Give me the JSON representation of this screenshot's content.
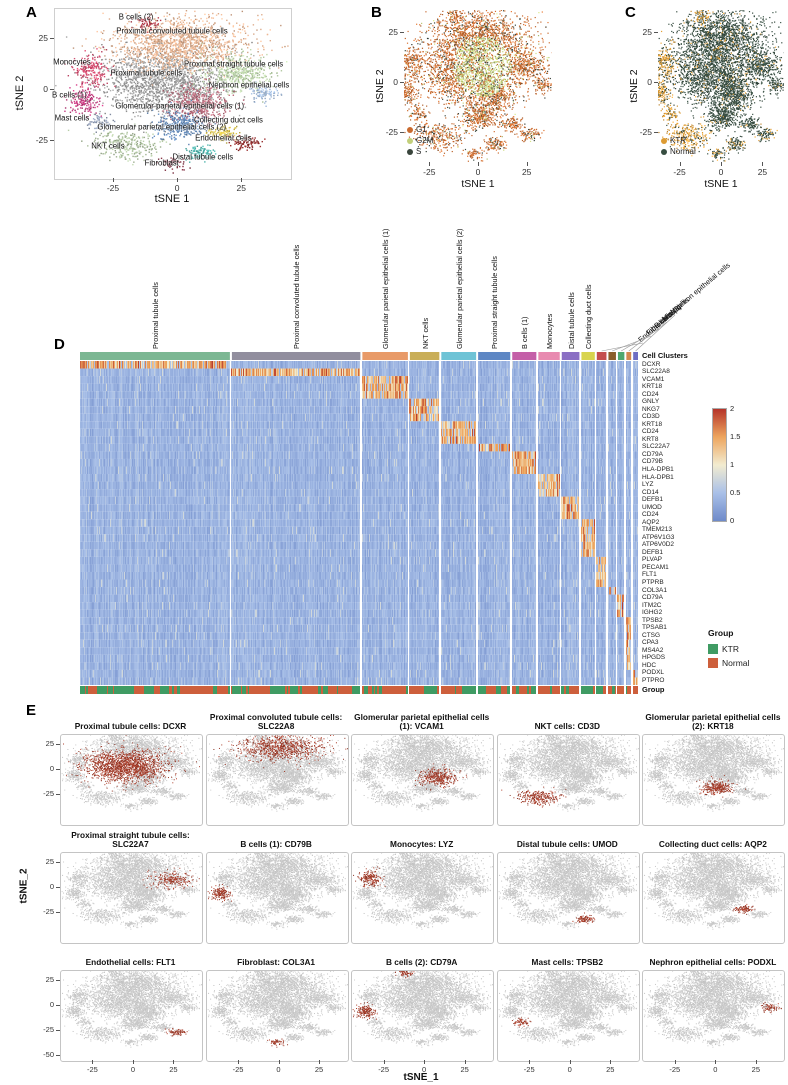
{
  "labels": {
    "a": "A",
    "b": "B",
    "c": "C",
    "d": "D",
    "e": "E"
  },
  "axes": {
    "tsne1": "tSNE 1",
    "tsne2": "tSNE 2",
    "tsne1e": "tSNE_1",
    "tsne2e": "tSNE_2",
    "xticks": [
      -25,
      0,
      25
    ],
    "yticks": [
      25,
      0,
      -25
    ],
    "yticks_last_row": [
      25,
      0,
      -25,
      -50
    ]
  },
  "chart_data": {
    "panel_a": {
      "type": "scatter",
      "xlabel": "tSNE 1",
      "ylabel": "tSNE 2",
      "xlim": [
        -48,
        44
      ],
      "ylim": [
        -44,
        40
      ],
      "xticks": [
        -25,
        0,
        25
      ],
      "yticks": [
        25,
        0,
        -25
      ],
      "clusters": [
        {
          "id": "proximal_tubule",
          "label": "Proximal tubule cells",
          "color": "#9b9b9b",
          "cx": -6,
          "cy": 4,
          "sx": 13,
          "sy": 8,
          "n": 1600,
          "label_at": [
            -12,
            8
          ]
        },
        {
          "id": "proximal_convoluted",
          "label": "Proximal convoluted tubule cells",
          "color": "#e2b08f",
          "cx": 1,
          "cy": 23,
          "sx": 13,
          "sy": 6.5,
          "n": 1400,
          "label_at": [
            -2,
            28.5
          ]
        },
        {
          "id": "b_cells_2",
          "label": "B cells (2)",
          "color": "#b03a48",
          "cx": -12,
          "cy": 33,
          "sx": 2.5,
          "sy": 1.8,
          "n": 60,
          "label_at": [
            -16,
            35.5
          ]
        },
        {
          "id": "monocytes",
          "label": "Monocytes",
          "color": "#d24b6e",
          "cx": -34,
          "cy": 10,
          "sx": 3.5,
          "sy": 4,
          "n": 190,
          "label_at": [
            -41,
            13.5
          ]
        },
        {
          "id": "b_cells_1",
          "label": "B cells (1)",
          "color": "#c23a7e",
          "cx": -37,
          "cy": -5,
          "sx": 3,
          "sy": 3.5,
          "n": 160,
          "label_at": [
            -42,
            -3
          ]
        },
        {
          "id": "mast_cells",
          "label": "Mast cells",
          "color": "#8f9bb3",
          "cx": -31,
          "cy": -16,
          "sx": 2.5,
          "sy": 2,
          "n": 70,
          "label_at": [
            -41,
            -14.5
          ]
        },
        {
          "id": "nkt_cells",
          "label": "NKT cells",
          "color": "#a9bd9a",
          "cx": -20,
          "cy": -27,
          "sx": 6,
          "sy": 3.5,
          "n": 280,
          "label_at": [
            -27,
            -28
          ]
        },
        {
          "id": "glomerular_parietal_1",
          "label": "Glomerular parietal epithelial cells (1)",
          "color": "#b56576",
          "cx": 8,
          "cy": -7,
          "sx": 6,
          "sy": 4.5,
          "n": 430,
          "label_at": [
            1,
            -8.5
          ]
        },
        {
          "id": "glomerular_parietal_2",
          "label": "Glomerular parietal epithelial cells (2)",
          "color": "#5f86b5",
          "cx": 1,
          "cy": -17,
          "sx": 5,
          "sy": 3.5,
          "n": 320,
          "label_at": [
            -6,
            -19
          ]
        },
        {
          "id": "proximal_straight",
          "label": "Proximal straight tubule cells",
          "color": "#b8d0a6",
          "cx": 23,
          "cy": 9,
          "sx": 6.5,
          "sy": 4.5,
          "n": 430,
          "label_at": [
            22,
            12.5
          ]
        },
        {
          "id": "nephron_epithelial",
          "label": "Nephron epithelial cells",
          "color": "#9fb8d8",
          "cx": 33,
          "cy": -1,
          "sx": 3,
          "sy": 2.2,
          "n": 90,
          "label_at": [
            28,
            2
          ]
        },
        {
          "id": "collecting_duct",
          "label": "Collecting duct cells",
          "color": "#d6c04c",
          "cx": 17,
          "cy": -21,
          "sx": 3,
          "sy": 1.8,
          "n": 110,
          "label_at": [
            20,
            -15.5
          ]
        },
        {
          "id": "endothelial",
          "label": "Endothelial cells",
          "color": "#8e2a2a",
          "cx": 26,
          "cy": -26,
          "sx": 3,
          "sy": 1.8,
          "n": 90,
          "label_at": [
            18,
            -24
          ]
        },
        {
          "id": "distal_tubule",
          "label": "Distal tubule cells",
          "color": "#49b0a8",
          "cx": 8,
          "cy": -31,
          "sx": 3,
          "sy": 1.8,
          "n": 110,
          "label_at": [
            10,
            -33.5
          ]
        },
        {
          "id": "fibroblast",
          "label": "Fibroblast",
          "color": "#7c2d3e",
          "cx": -3,
          "cy": -36,
          "sx": 2.5,
          "sy": 1.4,
          "n": 60,
          "label_at": [
            -6,
            -36.5
          ]
        }
      ]
    },
    "panel_b": {
      "type": "scatter",
      "xlabel": "tSNE 1",
      "ylabel": "tSNE 2",
      "xlim": [
        -38,
        38
      ],
      "ylim": [
        -40,
        36
      ],
      "legend": [
        {
          "label": "G1",
          "color": "#c96a2e"
        },
        {
          "label": "G2M",
          "color": "#c2cf7a"
        },
        {
          "label": "S",
          "color": "#39453c"
        }
      ]
    },
    "panel_c": {
      "type": "scatter",
      "xlabel": "tSNE 1",
      "ylabel": "tSNE 2",
      "xlim": [
        -38,
        38
      ],
      "ylim": [
        -40,
        36
      ],
      "legend": [
        {
          "label": "KTR",
          "color": "#dd9b33"
        },
        {
          "label": "Normal",
          "color": "#374d41"
        }
      ]
    },
    "panel_d": {
      "type": "heatmap",
      "strip_label": "Cell Clusters",
      "group_row_label": "Group",
      "columns": [
        {
          "label": "Proximal tubule cells",
          "frac": 0.28,
          "color": "#7cb793",
          "orient": "vertical"
        },
        {
          "label": "Proximal convoluted tubule cells",
          "frac": 0.24,
          "color": "#918e9e",
          "orient": "vertical"
        },
        {
          "label": "Glomerular parietal epithelial cells (1)",
          "frac": 0.085,
          "color": "#e89a68",
          "orient": "vertical"
        },
        {
          "label": "NKT cells",
          "frac": 0.055,
          "color": "#c9ae58",
          "orient": "vertical"
        },
        {
          "label": "Glomerular parietal epithelial cells (2)",
          "frac": 0.065,
          "color": "#6ec3d6",
          "orient": "vertical"
        },
        {
          "label": "Proximal straight tubule cells",
          "frac": 0.06,
          "color": "#5e87c4",
          "orient": "vertical"
        },
        {
          "label": "B cells (1)",
          "frac": 0.045,
          "color": "#c45fa8",
          "orient": "vertical"
        },
        {
          "label": "Monocytes",
          "frac": 0.04,
          "color": "#e88ab0",
          "orient": "vertical"
        },
        {
          "label": "Distal tubule cells",
          "frac": 0.033,
          "color": "#8a6fc4",
          "orient": "vertical"
        },
        {
          "label": "Collecting duct cells",
          "frac": 0.025,
          "color": "#d8d44e",
          "orient": "vertical"
        },
        {
          "label": "Endothelial cells",
          "frac": 0.018,
          "color": "#c44e4e",
          "orient": "diagonal"
        },
        {
          "label": "Fibroblast",
          "frac": 0.014,
          "color": "#8a5e2a",
          "orient": "diagonal"
        },
        {
          "label": "B cells (2)",
          "frac": 0.012,
          "color": "#4ea86e",
          "orient": "diagonal"
        },
        {
          "label": "Mast cells",
          "frac": 0.009,
          "color": "#d4884e",
          "orient": "diagonal"
        },
        {
          "label": "Nephron epithelial cells",
          "frac": 0.009,
          "color": "#6e6ec4",
          "orient": "diagonal"
        }
      ],
      "genes": [
        {
          "name": "DCXR",
          "block": 0
        },
        {
          "name": "SLC22A8",
          "block": 1
        },
        {
          "name": "VCAM1",
          "block": 2
        },
        {
          "name": "KRT18",
          "block": 2
        },
        {
          "name": "CD24",
          "block": 2
        },
        {
          "name": "GNLY",
          "block": 3
        },
        {
          "name": "NKG7",
          "block": 3
        },
        {
          "name": "CD3D",
          "block": 3
        },
        {
          "name": "KRT18",
          "block": 4
        },
        {
          "name": "CD24",
          "block": 4
        },
        {
          "name": "KRT8",
          "block": 4
        },
        {
          "name": "SLC22A7",
          "block": 5
        },
        {
          "name": "CD79A",
          "block": 6
        },
        {
          "name": "CD79B",
          "block": 6
        },
        {
          "name": "HLA-DPB1",
          "block": 6
        },
        {
          "name": "HLA-DPB1",
          "block": 7
        },
        {
          "name": "LYZ",
          "block": 7
        },
        {
          "name": "CD14",
          "block": 7
        },
        {
          "name": "DEFB1",
          "block": 8
        },
        {
          "name": "UMOD",
          "block": 8
        },
        {
          "name": "CD24",
          "block": 8
        },
        {
          "name": "AQP2",
          "block": 9
        },
        {
          "name": "TMEM213",
          "block": 9
        },
        {
          "name": "ATP6V1G3",
          "block": 9
        },
        {
          "name": "ATP6V0D2",
          "block": 9
        },
        {
          "name": "DEFB1",
          "block": 9
        },
        {
          "name": "PLVAP",
          "block": 10
        },
        {
          "name": "PECAM1",
          "block": 10
        },
        {
          "name": "FLT1",
          "block": 10
        },
        {
          "name": "PTPRB",
          "block": 10
        },
        {
          "name": "COL3A1",
          "block": 11
        },
        {
          "name": "CD79A",
          "block": 12
        },
        {
          "name": "ITM2C",
          "block": 12
        },
        {
          "name": "IGHG2",
          "block": 12
        },
        {
          "name": "TPSB2",
          "block": 13
        },
        {
          "name": "TPSAB1",
          "block": 13
        },
        {
          "name": "CTSG",
          "block": 13
        },
        {
          "name": "CPA3",
          "block": 13
        },
        {
          "name": "MS4A2",
          "block": 13
        },
        {
          "name": "HPGDS",
          "block": 13
        },
        {
          "name": "HDC",
          "block": 13
        },
        {
          "name": "PODXL",
          "block": 14
        },
        {
          "name": "PTPRO",
          "block": 14
        }
      ],
      "colorbar": {
        "ticks": [
          2,
          1.5,
          1,
          0.5,
          0
        ],
        "stops": [
          "#b5342a",
          "#eda55e",
          "#f2ecd0",
          "#a9c0e8",
          "#6e8ac9"
        ]
      },
      "group_legend": {
        "title": "Group",
        "items": [
          {
            "label": "KTR",
            "color": "#3f9b63"
          },
          {
            "label": "Normal",
            "color": "#cd5f3c"
          }
        ]
      }
    },
    "panel_e": {
      "type": "scatter-grid",
      "xlabel": "tSNE_1",
      "ylabel": "tSNE_2",
      "xlim": [
        -45,
        42
      ],
      "ylim": [
        -55,
        35
      ],
      "xticks": [
        -25,
        0,
        25
      ],
      "yticks": [
        25,
        0,
        -25
      ],
      "yticks_last_row": [
        25,
        0,
        -25,
        -50
      ],
      "base_color": "#d3d3d3",
      "highlight_color": "#a03a28",
      "plots": [
        {
          "title": "Proximal tubule cells: DCXR",
          "highlight": "proximal_tubule",
          "strength": 1
        },
        {
          "title": "Proximal convoluted tubule cells: SLC22A8",
          "highlight": "proximal_convoluted",
          "strength": 0.55
        },
        {
          "title": "Glomerular parietal epithelial cells (1): VCAM1",
          "highlight": "glomerular_parietal_1",
          "strength": 0.8
        },
        {
          "title": "NKT cells: CD3D",
          "highlight": "nkt_cells",
          "strength": 1
        },
        {
          "title": "Glomerular parietal epithelial cells (2): KRT18",
          "highlight": "glomerular_parietal_2",
          "strength": 0.9
        },
        {
          "title": "Proximal straight tubule cells: SLC22A7",
          "highlight": "proximal_straight",
          "strength": 0.5
        },
        {
          "title": "B cells (1): CD79B",
          "highlight": "b_cells_1",
          "strength": 1
        },
        {
          "title": "Monocytes: LYZ",
          "highlight": "monocytes",
          "strength": 1
        },
        {
          "title": "Distal tubule cells: UMOD",
          "highlight": "distal_tubule",
          "strength": 0.9
        },
        {
          "title": "Collecting duct cells: AQP2",
          "highlight": "collecting_duct",
          "strength": 0.9
        },
        {
          "title": "Endothelial cells: FLT1",
          "highlight": "endothelial",
          "strength": 0.9
        },
        {
          "title": "Fibroblast: COL3A1",
          "highlight": "fibroblast",
          "strength": 0.9
        },
        {
          "title": "B cells (2): CD79A",
          "highlight": "b_cells_2",
          "strength": 1,
          "also": [
            "b_cells_1"
          ]
        },
        {
          "title": "Mast cells: TPSB2",
          "highlight": "mast_cells",
          "strength": 0.9
        },
        {
          "title": "Nephron epithelial cells: PODXL",
          "highlight": "nephron_epithelial",
          "strength": 0.8
        }
      ]
    }
  }
}
